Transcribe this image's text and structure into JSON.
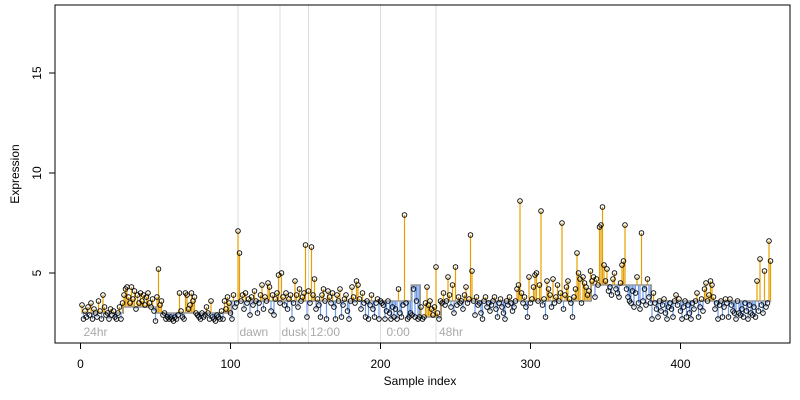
{
  "chart_data": {
    "type": "lollipop",
    "xlabel": "Sample index",
    "ylabel": "Expression",
    "xlim": [
      -17,
      473
    ],
    "ylim": [
      1.5,
      18.4
    ],
    "xticks": [
      0,
      100,
      200,
      300,
      400
    ],
    "yticks": [
      5,
      10,
      15
    ],
    "vlines": [
      105,
      133,
      152,
      200,
      237
    ],
    "annotations": [
      {
        "text": "24hr",
        "x": 2,
        "y": 2.0
      },
      {
        "text": "dawn",
        "x": 106,
        "y": 2.0
      },
      {
        "text": "dusk",
        "x": 134,
        "y": 2.0
      },
      {
        "text": "12:00",
        "x": 153,
        "y": 2.0
      },
      {
        "text": "0:00",
        "x": 204,
        "y": 2.0
      },
      {
        "text": "48hr",
        "x": 239,
        "y": 2.0
      }
    ],
    "baseline": {
      "color": "#999999",
      "x_start": [
        0.5,
        28.5,
        50.5,
        100.5,
        220.5,
        226.5,
        240.5,
        340.5,
        380.5
      ],
      "x_end": [
        28.5,
        50.5,
        100.5,
        220.5,
        226.5,
        240.5,
        340.5,
        380.5,
        460.5
      ],
      "values": [
        3.0,
        3.3,
        3.0,
        3.6,
        4.4,
        2.8,
        3.6,
        4.4,
        3.6
      ]
    },
    "up_color": "#e69f00",
    "down_color": "#6f9be6",
    "values": [
      3.4,
      2.7,
      3.1,
      2.8,
      3.3,
      2.9,
      3.5,
      2.7,
      3.2,
      3.0,
      2.8,
      3.6,
      3.1,
      2.7,
      3.9,
      3.3,
      2.9,
      3.0,
      2.7,
      3.2,
      2.9,
      3.1,
      2.8,
      2.7,
      3.0,
      3.3,
      2.7,
      3.5,
      3.9,
      4.2,
      4.3,
      3.8,
      3.5,
      4.3,
      3.7,
      4.1,
      3.2,
      3.9,
      3.5,
      4.0,
      3.6,
      3.9,
      3.4,
      3.8,
      4.0,
      3.5,
      3.3,
      3.7,
      3.1,
      2.6,
      3.8,
      5.2,
      3.4,
      3.6,
      2.9,
      3.0,
      2.7,
      2.8,
      2.7,
      2.8,
      2.7,
      2.6,
      2.8,
      2.7,
      2.9,
      4.0,
      3.1,
      2.8,
      2.7,
      4.0,
      3.9,
      3.2,
      3.4,
      4.0,
      3.6,
      3.8,
      3.0,
      2.9,
      2.8,
      2.7,
      3.0,
      2.8,
      2.9,
      3.3,
      3.0,
      2.7,
      3.6,
      2.8,
      2.7,
      2.6,
      2.9,
      2.8,
      2.7,
      3.1,
      2.7,
      3.6,
      3.2,
      3.8,
      3.5,
      3.0,
      2.7,
      3.9,
      3.3,
      3.5,
      7.1,
      6.0,
      3.6,
      3.9,
      3.2,
      4.0,
      3.5,
      3.7,
      2.9,
      3.8,
      3.4,
      4.1,
      3.6,
      3.0,
      3.5,
      3.9,
      4.4,
      3.2,
      3.8,
      3.6,
      4.5,
      4.3,
      3.1,
      3.9,
      2.9,
      3.7,
      4.0,
      4.9,
      3.5,
      5.0,
      3.8,
      3.4,
      4.0,
      3.2,
      3.7,
      3.9,
      2.7,
      3.5,
      4.6,
      3.9,
      3.3,
      4.2,
      3.6,
      3.8,
      4.0,
      6.4,
      2.8,
      4.1,
      3.5,
      6.3,
      3.9,
      4.7,
      3.2,
      3.7,
      3.4,
      2.8,
      3.9,
      4.2,
      3.6,
      2.7,
      4.1,
      3.8,
      3.5,
      4.0,
      3.3,
      2.7,
      3.9,
      3.6,
      4.2,
      2.8,
      3.4,
      3.7,
      3.9,
      3.1,
      2.7,
      3.6,
      4.3,
      3.8,
      3.5,
      4.6,
      4.4,
      3.7,
      3.2,
      4.0,
      3.5,
      2.8,
      3.6,
      2.7,
      3.4,
      3.9,
      3.2,
      2.8,
      3.5,
      3.7,
      2.7,
      3.6,
      3.5,
      3.4,
      2.7,
      3.1,
      3.6,
      3.0,
      2.7,
      3.3,
      2.8,
      3.2,
      2.7,
      4.2,
      3.0,
      2.8,
      3.4,
      7.9,
      3.5,
      2.7,
      2.8,
      3.0,
      2.9,
      4.2,
      2.8,
      3.6,
      2.7,
      2.8,
      3.3,
      2.7,
      2.8,
      3.5,
      4.3,
      3.4,
      3.6,
      3.2,
      2.9,
      3.3,
      5.3,
      3.0,
      2.7,
      3.6,
      3.5,
      4.0,
      3.4,
      3.6,
      4.8,
      3.9,
      3.3,
      4.4,
      3.0,
      5.3,
      3.4,
      3.8,
      3.5,
      3.6,
      3.2,
      3.9,
      4.3,
      3.5,
      3.7,
      6.9,
      5.1,
      3.6,
      2.9,
      3.8,
      3.4,
      3.5,
      3.0,
      2.7,
      3.6,
      3.8,
      3.3,
      3.5,
      3.1,
      3.4,
      3.6,
      3.8,
      3.2,
      2.8,
      3.5,
      3.7,
      3.3,
      3.0,
      2.7,
      3.6,
      3.4,
      3.8,
      3.5,
      3.1,
      3.3,
      3.6,
      4.2,
      4.4,
      8.6,
      4.0,
      3.5,
      3.8,
      3.3,
      2.8,
      4.8,
      3.5,
      3.7,
      4.3,
      4.9,
      5.0,
      3.6,
      4.4,
      8.1,
      3.4,
      3.7,
      2.8,
      4.6,
      4.2,
      3.9,
      3.3,
      4.7,
      3.5,
      3.8,
      4.4,
      3.6,
      4.0,
      7.5,
      3.2,
      3.9,
      4.3,
      4.6,
      3.7,
      3.5,
      2.8,
      3.8,
      4.2,
      6.0,
      5.0,
      4.7,
      3.5,
      4.8,
      4.5,
      4.3,
      3.9,
      4.1,
      5.1,
      4.6,
      4.8,
      3.8,
      4.7,
      4.4,
      7.3,
      7.4,
      8.3,
      5.4,
      4.6,
      5.2,
      4.1,
      4.3,
      3.9,
      4.7,
      5.0,
      4.2,
      4.0,
      3.8,
      4.5,
      5.4,
      5.6,
      7.4,
      4.2,
      3.8,
      3.6,
      3.5,
      4.1,
      3.3,
      4.0,
      4.8,
      3.5,
      3.2,
      7.0,
      3.6,
      4.2,
      3.4,
      4.7,
      3.8,
      3.5,
      2.7,
      4.0,
      3.5,
      3.2,
      2.8,
      3.6,
      3.1,
      3.4,
      3.7,
      3.0,
      2.7,
      3.3,
      3.5,
      3.2,
      2.8,
      3.6,
      3.9,
      3.4,
      3.7,
      3.1,
      2.7,
      3.3,
      3.6,
      2.8,
      3.4,
      3.0,
      2.7,
      3.5,
      3.2,
      3.6,
      4.0,
      2.8,
      3.3,
      3.7,
      3.1,
      4.2,
      4.5,
      3.6,
      3.9,
      4.6,
      4.4,
      3.8,
      3.2,
      3.5,
      2.7,
      3.4,
      3.6,
      2.8,
      3.3,
      3.7,
      3.5,
      2.8,
      3.7,
      3.4,
      3.1,
      3.0,
      2.7,
      3.6,
      3.0,
      2.9,
      3.2,
      2.8,
      3.5,
      3.1,
      2.7,
      3.4,
      3.0,
      2.9,
      3.3,
      2.8,
      4.6,
      3.1,
      5.7,
      3.4,
      3.0,
      5.1,
      3.3,
      3.5,
      6.6,
      5.6
    ]
  }
}
